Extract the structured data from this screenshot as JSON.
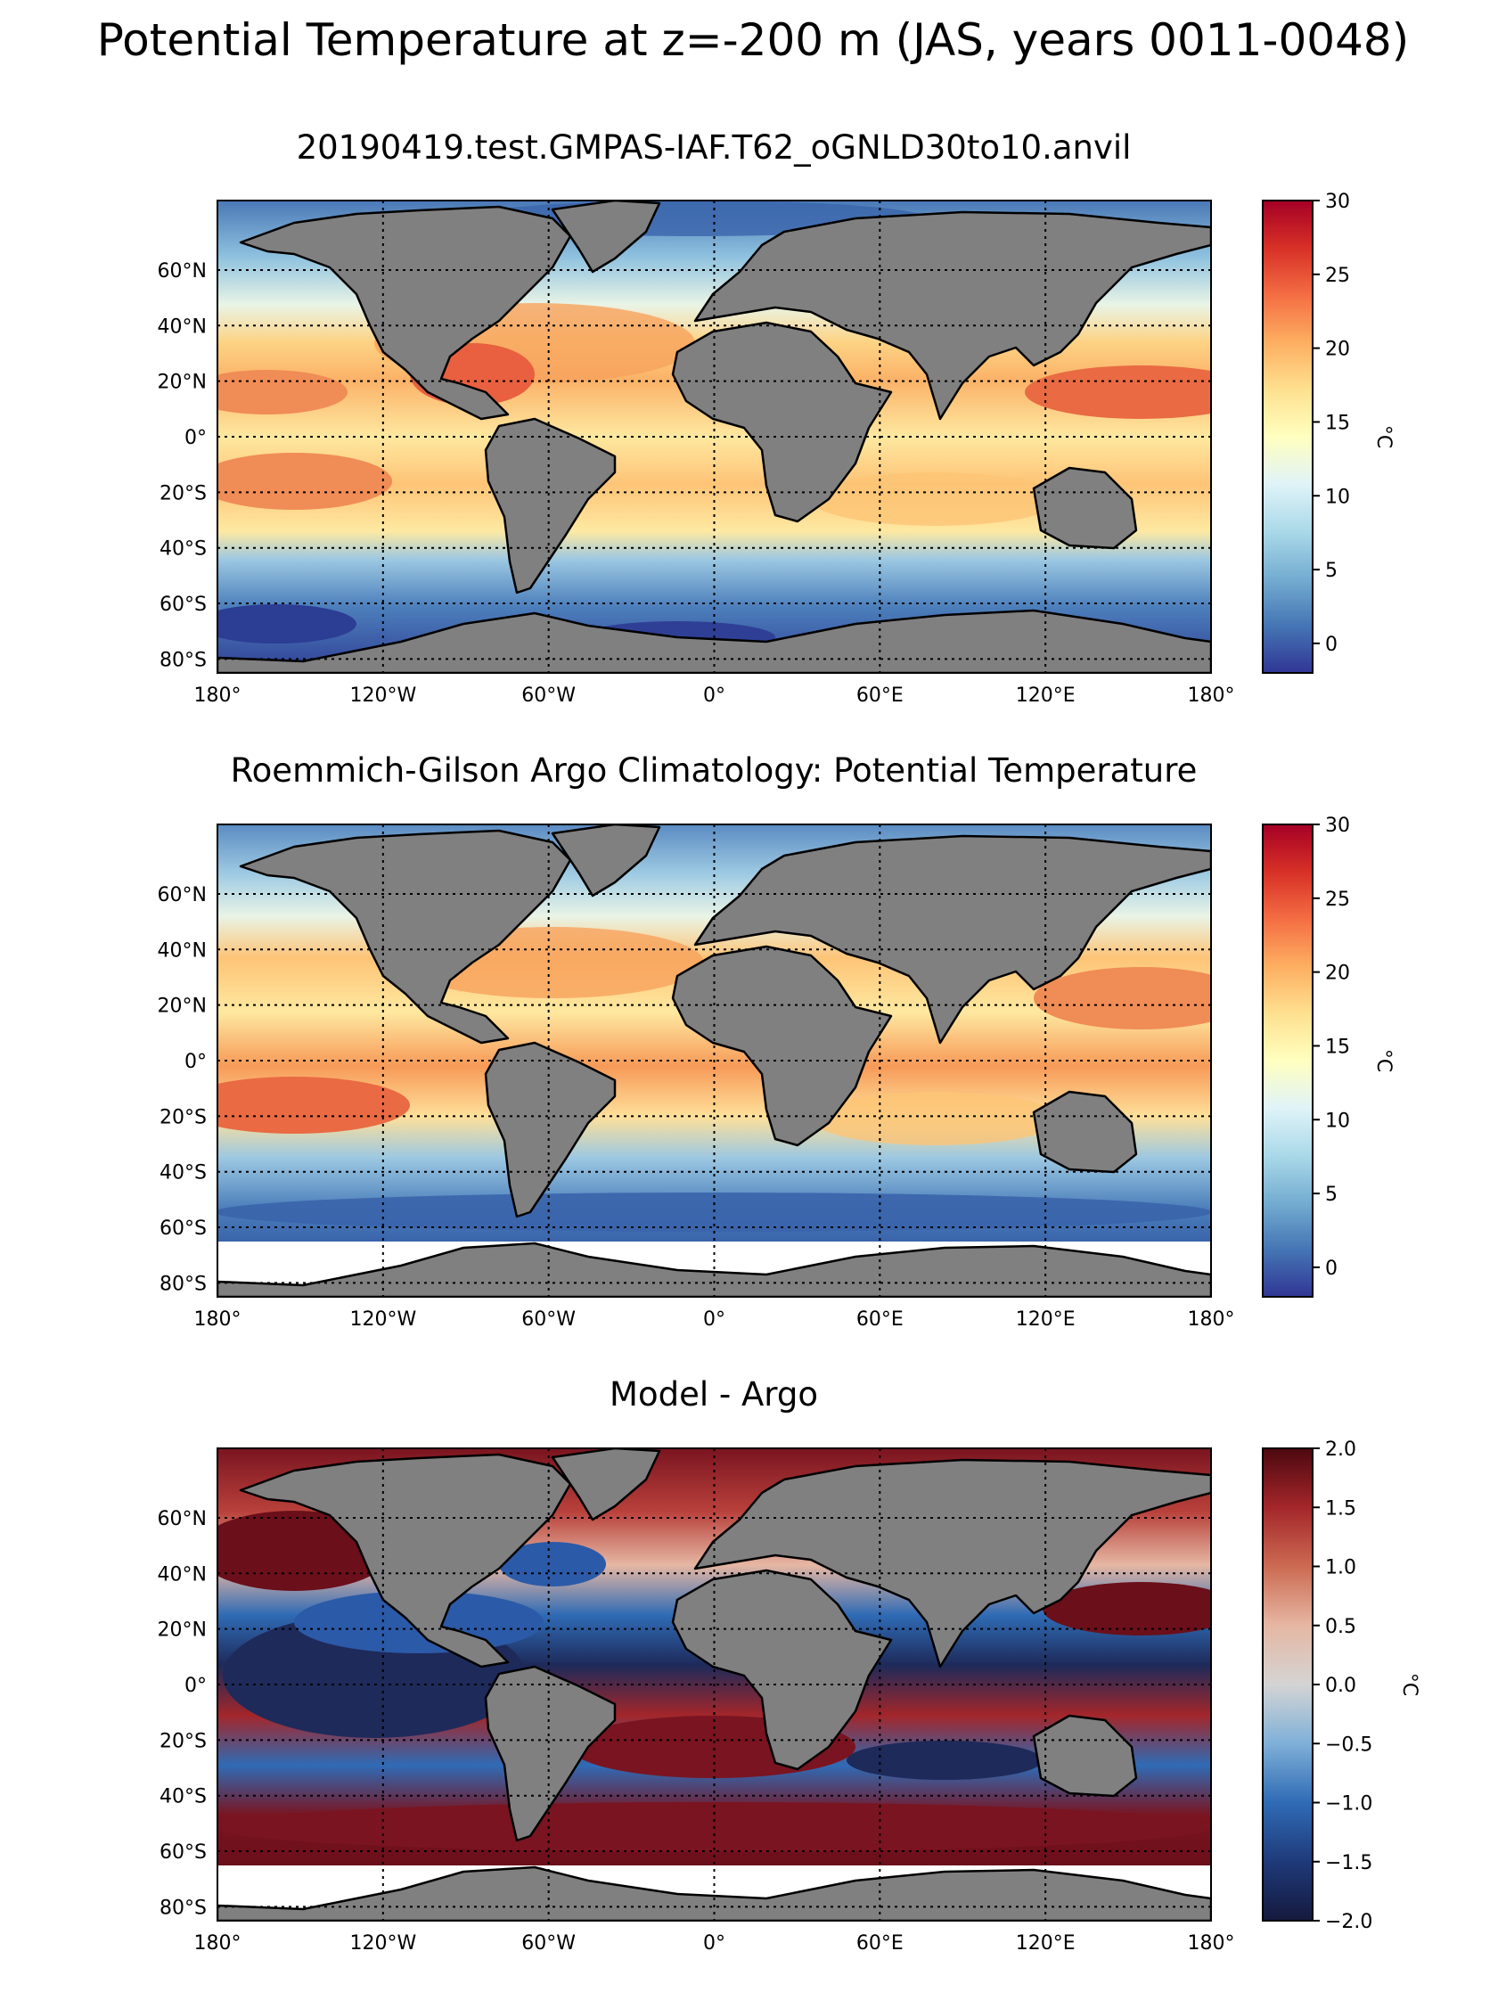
{
  "figure_title": "Potential Temperature at z=-200 m (JAS, years 0011-0048)",
  "colors": {
    "land": "#808080",
    "missing": "#ffffff",
    "coastline": "#000000",
    "grid": "#000000",
    "colormap_temperature": "RdYlBu_r",
    "colormap_difference": "RdBu_r (dark extremes)"
  },
  "panels": [
    {
      "title": "20190419.test.GMPAS-IAF.T62_oGNLD30to10.anvil",
      "field": "model",
      "colorbar": {
        "unit": "°C",
        "min": -2,
        "max": 30,
        "ticks": [
          "0",
          "5",
          "10",
          "15",
          "20",
          "25",
          "30"
        ],
        "tick_values": [
          0,
          5,
          10,
          15,
          20,
          25,
          30
        ]
      }
    },
    {
      "title": "Roemmich-Gilson Argo Climatology: Potential Temperature",
      "field": "argo",
      "colorbar": {
        "unit": "°C",
        "min": -2,
        "max": 30,
        "ticks": [
          "0",
          "5",
          "10",
          "15",
          "20",
          "25",
          "30"
        ],
        "tick_values": [
          0,
          5,
          10,
          15,
          20,
          25,
          30
        ]
      }
    },
    {
      "title": "Model - Argo",
      "field": "difference",
      "colorbar": {
        "unit": "°C",
        "min": -2.0,
        "max": 2.0,
        "ticks": [
          "−2.0",
          "−1.5",
          "−1.0",
          "−0.5",
          "0.0",
          "0.5",
          "1.0",
          "1.5",
          "2.0"
        ],
        "tick_values": [
          -2.0,
          -1.5,
          -1.0,
          -0.5,
          0.0,
          0.5,
          1.0,
          1.5,
          2.0
        ]
      }
    }
  ],
  "map_axes": {
    "lon_ticks": [
      "180°",
      "120°W",
      "60°W",
      "0°",
      "60°E",
      "120°E",
      "180°"
    ],
    "lon_values": [
      -180,
      -120,
      -60,
      0,
      60,
      120,
      180
    ],
    "lat_ticks": [
      "60°N",
      "40°N",
      "20°N",
      "0°",
      "20°S",
      "40°S",
      "60°S",
      "80°S"
    ],
    "lat_values": [
      60,
      40,
      20,
      0,
      -20,
      -40,
      -60,
      -80
    ],
    "lat_range": [
      -85,
      85
    ],
    "lon_range": [
      -180,
      180
    ]
  }
}
